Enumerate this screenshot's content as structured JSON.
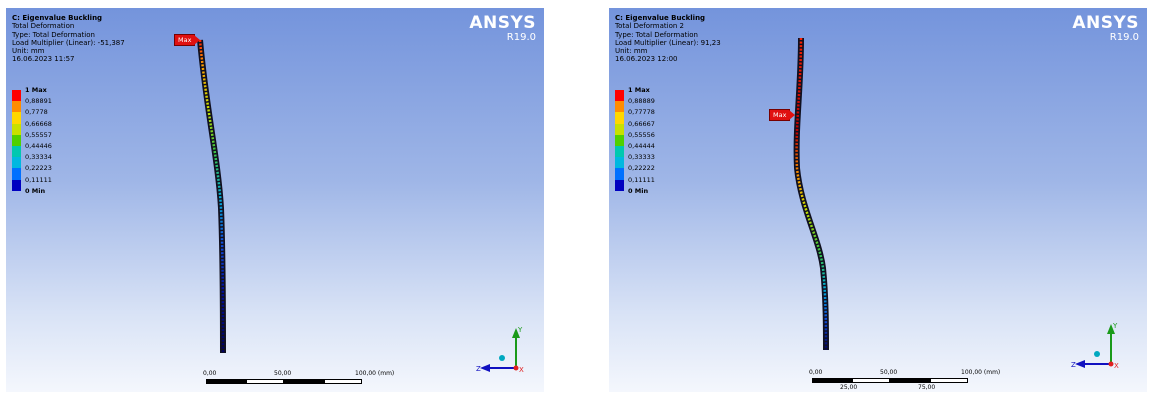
{
  "legend_colors": [
    "#ff0000",
    "#ff8c00",
    "#ffd700",
    "#c8e000",
    "#50d000",
    "#00c8b0",
    "#00b8e0",
    "#0070ff",
    "#0000c0"
  ],
  "left": {
    "title": "C: Eigenvalue Buckling",
    "result": "Total Deformation",
    "type": "Type: Total Deformation",
    "load": "Load Multiplier (Linear): -51,387",
    "unit": "Unit: mm",
    "date": "16.06.2023 11:57",
    "brand": "ANSYS",
    "version": "R19.0",
    "max_label": "Max",
    "legend": [
      "1 Max",
      "0,88891",
      "0,7778",
      "0,66668",
      "0,55557",
      "0,44446",
      "0,33334",
      "0,22223",
      "0,11111",
      "0 Min"
    ],
    "scale": {
      "zero": "0,00",
      "mid": "50,00",
      "end": "100,00 (mm)"
    },
    "axes": {
      "y": "Y",
      "z": "Z",
      "x": "X"
    }
  },
  "right": {
    "title": "C: Eigenvalue Buckling",
    "result": "Total Deformation 2",
    "type": "Type: Total Deformation",
    "load": "Load Multiplier (Linear): 91,23",
    "unit": "Unit: mm",
    "date": "16.06.2023 12:00",
    "brand": "ANSYS",
    "version": "R19.0",
    "max_label": "Max",
    "legend": [
      "1 Max",
      "0,88889",
      "0,77778",
      "0,66667",
      "0,55556",
      "0,44444",
      "0,33333",
      "0,22222",
      "0,11111",
      "0 Min"
    ],
    "scale": {
      "zero": "0,00",
      "mid": "50,00",
      "end": "100,00 (mm)",
      "sub_a": "25,00",
      "sub_b": "75,00"
    },
    "axes": {
      "y": "Y",
      "z": "Z",
      "x": "X"
    }
  }
}
